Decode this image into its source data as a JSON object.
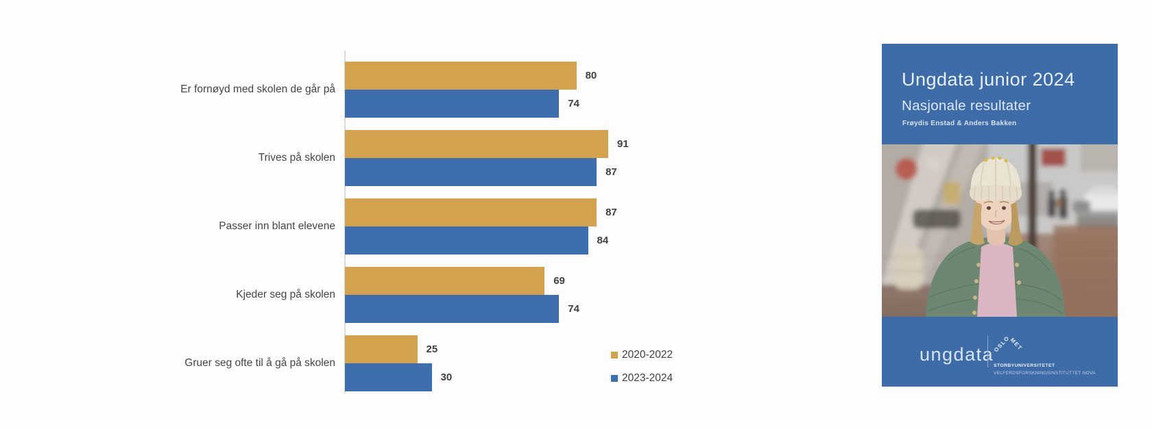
{
  "chart_data": {
    "type": "bar",
    "orientation": "horizontal",
    "categories": [
      "Er fornøyd med skolen de går på",
      "Trives på skolen",
      "Passer inn blant elevene",
      "Kjeder seg på skolen",
      "Gruer seg ofte til å gå på skolen"
    ],
    "series": [
      {
        "name": "2020-2022",
        "color": "#d2a24f",
        "values": [
          80,
          91,
          87,
          69,
          25
        ]
      },
      {
        "name": "2023-2024",
        "color": "#3e6eae",
        "values": [
          74,
          87,
          84,
          74,
          30
        ]
      }
    ],
    "xlim": [
      0,
      100
    ],
    "value_labels": true,
    "grid": false,
    "legend_position": "bottom-right",
    "axis_color": "#d9d9d9",
    "title": "",
    "xlabel": "",
    "ylabel": ""
  },
  "cover": {
    "title": "Ungdata junior 2024",
    "subtitle": "Nasjonale resultater",
    "authors": "Frøydis Enstad & Anders Bakken",
    "background_color": "#3e6ca8",
    "footer": {
      "brand": "ungdata",
      "org_chevron_top": "OSLO",
      "org_chevron_bottom": "MET",
      "org_name": "STORBYUNIVERSITETET",
      "org_sub": "VELFERDSFORSKNINGSINSTITUTTET NOVA"
    }
  }
}
